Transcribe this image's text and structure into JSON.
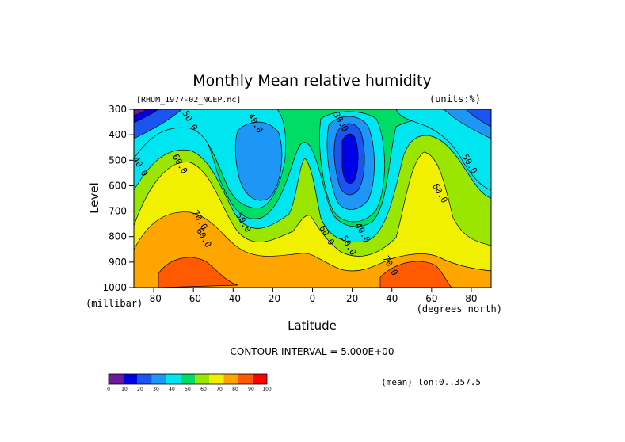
{
  "chart_data": {
    "type": "heatmap",
    "title": "Monthly Mean relative humidity",
    "source_label": "[RHUM_1977-02_NCEP.nc]",
    "units_label": "(units:%)",
    "xlabel": "Latitude",
    "x_unit_label": "(degrees_north)",
    "ylabel": "Level",
    "y_unit_label": "(millibar)",
    "xlim": [
      -90,
      90
    ],
    "ylim": [
      1000,
      300
    ],
    "x_ticks": [
      {
        "value": -80,
        "label": "-80"
      },
      {
        "value": -60,
        "label": "-60"
      },
      {
        "value": -40,
        "label": "-40"
      },
      {
        "value": -20,
        "label": "-20"
      },
      {
        "value": 0,
        "label": "0"
      },
      {
        "value": 20,
        "label": "20"
      },
      {
        "value": 40,
        "label": "40"
      },
      {
        "value": 60,
        "label": "60"
      },
      {
        "value": 80,
        "label": "80"
      }
    ],
    "y_ticks": [
      {
        "value": 300,
        "label": "300"
      },
      {
        "value": 400,
        "label": "400"
      },
      {
        "value": 500,
        "label": "500"
      },
      {
        "value": 600,
        "label": "600"
      },
      {
        "value": 700,
        "label": "700"
      },
      {
        "value": 800,
        "label": "800"
      },
      {
        "value": 900,
        "label": "900"
      },
      {
        "value": 1000,
        "label": "1000"
      }
    ],
    "contour_interval_text": "CONTOUR INTERVAL = 5.000E+00",
    "averaging_text": "(mean) lon:0..357.5",
    "contour_labels": [
      {
        "text": "50.0",
        "lat": -63,
        "lev": 350
      },
      {
        "text": "40.0",
        "lat": -30,
        "lev": 360
      },
      {
        "text": "30.0",
        "lat": 13,
        "lev": 355
      },
      {
        "text": "60.0",
        "lat": -68,
        "lev": 520
      },
      {
        "text": "40.0",
        "lat": -88,
        "lev": 530
      },
      {
        "text": "50.0",
        "lat": 78,
        "lev": 520
      },
      {
        "text": "60.0",
        "lat": 63,
        "lev": 635
      },
      {
        "text": "70.0",
        "lat": -58,
        "lev": 740
      },
      {
        "text": "60.0",
        "lat": -56,
        "lev": 810
      },
      {
        "text": "50.0",
        "lat": -36,
        "lev": 750
      },
      {
        "text": "60.0",
        "lat": 6,
        "lev": 800
      },
      {
        "text": "50.0",
        "lat": 17,
        "lev": 840
      },
      {
        "text": "40.0",
        "lat": 24,
        "lev": 790
      },
      {
        "text": "70.0",
        "lat": 38,
        "lev": 920
      }
    ],
    "colorbar": {
      "levels": [
        "0",
        "10",
        "20",
        "30",
        "40",
        "50",
        "60",
        "70",
        "80",
        "90",
        "100"
      ],
      "colors": [
        "#6a1a9c",
        "#0000e6",
        "#1a55f0",
        "#1e96f5",
        "#00e6f0",
        "#00dc64",
        "#9ae600",
        "#f0f000",
        "#ffa500",
        "#ff5a00",
        "#ff0000"
      ]
    }
  }
}
